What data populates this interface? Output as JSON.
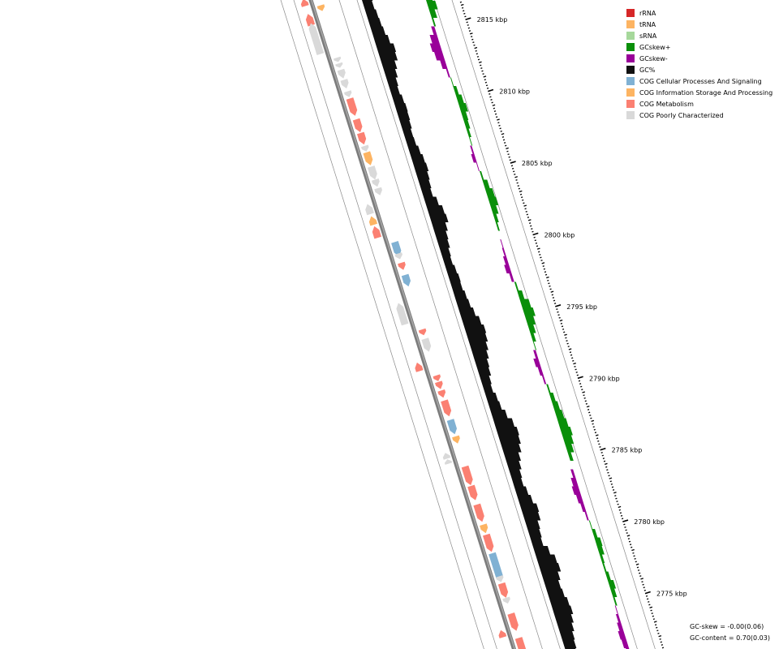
{
  "legend": [
    {
      "label": "rRNA",
      "color": "#d62728"
    },
    {
      "label": "tRNA",
      "color": "#fdb462"
    },
    {
      "label": "sRNA",
      "color": "#a6d89b"
    },
    {
      "label": "GCskew+",
      "color": "#0a8f0a"
    },
    {
      "label": "GCskew-",
      "color": "#990099"
    },
    {
      "label": "GC%",
      "color": "#111111"
    },
    {
      "label": "COG Cellular Processes And Signaling",
      "color": "#80b1d3"
    },
    {
      "label": "COG Information Storage And Processing",
      "color": "#fdb462"
    },
    {
      "label": "COG Metabolism",
      "color": "#fb8072"
    },
    {
      "label": "COG Poorly Characterized",
      "color": "#d9d9d9"
    }
  ],
  "stats": {
    "gc_skew": "GC-skew = -0.00(0.06)",
    "gc_content": "GC-content = 0.70(0.03)"
  },
  "ticks": [
    {
      "kbp": 2815,
      "label": "2815 kbp"
    },
    {
      "kbp": 2810,
      "label": "2810 kbp"
    },
    {
      "kbp": 2805,
      "label": "2805 kbp"
    },
    {
      "kbp": 2800,
      "label": "2800 kbp"
    },
    {
      "kbp": 2795,
      "label": "2795 kbp"
    },
    {
      "kbp": 2790,
      "label": "2790 kbp"
    },
    {
      "kbp": 2785,
      "label": "2785 kbp"
    },
    {
      "kbp": 2780,
      "label": "2780 kbp"
    },
    {
      "kbp": 2775,
      "label": "2775 kbp"
    }
  ],
  "genes": [
    {
      "kbp": 2816.2,
      "len": 0.5,
      "strand": "-",
      "cat": "COG Metabolism"
    },
    {
      "kbp": 2815.8,
      "len": 0.4,
      "strand": "+",
      "cat": "COG Information Storage And Processing"
    },
    {
      "kbp": 2815.0,
      "len": 0.8,
      "strand": "-",
      "cat": "COG Metabolism"
    },
    {
      "kbp": 2813.7,
      "len": 2.1,
      "strand": "-",
      "cat": "COG Poorly Characterized"
    },
    {
      "kbp": 2812.8,
      "len": 0.4,
      "strand": "-",
      "cat": "COG Poorly Characterized"
    },
    {
      "kbp": 2812.2,
      "len": 0.3,
      "strand": "+",
      "cat": "COG Poorly Characterized"
    },
    {
      "kbp": 2811.8,
      "len": 0.3,
      "strand": "+",
      "cat": "COG Poorly Characterized"
    },
    {
      "kbp": 2811.2,
      "len": 0.6,
      "strand": "+",
      "cat": "COG Poorly Characterized"
    },
    {
      "kbp": 2810.5,
      "len": 0.6,
      "strand": "+",
      "cat": "COG Poorly Characterized"
    },
    {
      "kbp": 2809.8,
      "len": 0.4,
      "strand": "+",
      "cat": "COG Poorly Characterized"
    },
    {
      "kbp": 2808.9,
      "len": 1.2,
      "strand": "+",
      "cat": "COG Metabolism"
    },
    {
      "kbp": 2807.6,
      "len": 0.9,
      "strand": "+",
      "cat": "COG Metabolism"
    },
    {
      "kbp": 2806.7,
      "len": 0.8,
      "strand": "+",
      "cat": "COG Metabolism"
    },
    {
      "kbp": 2806.0,
      "len": 0.4,
      "strand": "+",
      "cat": "COG Poorly Characterized"
    },
    {
      "kbp": 2805.3,
      "len": 0.9,
      "strand": "+",
      "cat": "COG Information Storage And Processing"
    },
    {
      "kbp": 2804.3,
      "len": 0.9,
      "strand": "+",
      "cat": "COG Poorly Characterized"
    },
    {
      "kbp": 2803.6,
      "len": 0.5,
      "strand": "+",
      "cat": "COG Poorly Characterized"
    },
    {
      "kbp": 2803.0,
      "len": 0.5,
      "strand": "+",
      "cat": "COG Poorly Characterized"
    },
    {
      "kbp": 2801.8,
      "len": 0.7,
      "strand": "-",
      "cat": "COG Poorly Characterized"
    },
    {
      "kbp": 2801.0,
      "len": 0.6,
      "strand": "-",
      "cat": "COG Information Storage And Processing"
    },
    {
      "kbp": 2800.2,
      "len": 0.8,
      "strand": "-",
      "cat": "COG Metabolism"
    },
    {
      "kbp": 2799.0,
      "len": 1.0,
      "strand": "+",
      "cat": "COG Cellular Processes And Signaling"
    },
    {
      "kbp": 2798.5,
      "len": 0.4,
      "strand": "+",
      "cat": "COG Poorly Characterized"
    },
    {
      "kbp": 2797.8,
      "len": 0.5,
      "strand": "+",
      "cat": "COG Metabolism"
    },
    {
      "kbp": 2796.8,
      "len": 0.8,
      "strand": "+",
      "cat": "COG Cellular Processes And Signaling"
    },
    {
      "kbp": 2794.5,
      "len": 1.5,
      "strand": "-",
      "cat": "COG Poorly Characterized"
    },
    {
      "kbp": 2793.2,
      "len": 0.4,
      "strand": "+",
      "cat": "COG Metabolism"
    },
    {
      "kbp": 2792.3,
      "len": 0.9,
      "strand": "+",
      "cat": "COG Poorly Characterized"
    },
    {
      "kbp": 2790.8,
      "len": 0.6,
      "strand": "-",
      "cat": "COG Metabolism"
    },
    {
      "kbp": 2790.0,
      "len": 0.4,
      "strand": "+",
      "cat": "COG Metabolism"
    },
    {
      "kbp": 2789.5,
      "len": 0.5,
      "strand": "+",
      "cat": "COG Metabolism"
    },
    {
      "kbp": 2788.9,
      "len": 0.5,
      "strand": "+",
      "cat": "COG Metabolism"
    },
    {
      "kbp": 2787.9,
      "len": 1.1,
      "strand": "+",
      "cat": "COG Metabolism"
    },
    {
      "kbp": 2786.6,
      "len": 1.0,
      "strand": "+",
      "cat": "COG Cellular Processes And Signaling"
    },
    {
      "kbp": 2785.7,
      "len": 0.5,
      "strand": "+",
      "cat": "COG Information Storage And Processing"
    },
    {
      "kbp": 2784.6,
      "len": 0.4,
      "strand": "-",
      "cat": "COG Poorly Characterized"
    },
    {
      "kbp": 2784.2,
      "len": 0.3,
      "strand": "-",
      "cat": "COG Poorly Characterized"
    },
    {
      "kbp": 2783.2,
      "len": 1.3,
      "strand": "+",
      "cat": "COG Metabolism"
    },
    {
      "kbp": 2782.0,
      "len": 1.0,
      "strand": "+",
      "cat": "COG Metabolism"
    },
    {
      "kbp": 2780.6,
      "len": 1.2,
      "strand": "+",
      "cat": "COG Metabolism"
    },
    {
      "kbp": 2779.5,
      "len": 0.6,
      "strand": "+",
      "cat": "COG Information Storage And Processing"
    },
    {
      "kbp": 2778.5,
      "len": 1.2,
      "strand": "+",
      "cat": "COG Metabolism"
    },
    {
      "kbp": 2776.8,
      "len": 2.0,
      "strand": "+",
      "cat": "COG Cellular Processes And Signaling"
    },
    {
      "kbp": 2776.0,
      "len": 0.4,
      "strand": "+",
      "cat": "COG Poorly Characterized"
    },
    {
      "kbp": 2775.2,
      "len": 1.0,
      "strand": "+",
      "cat": "COG Metabolism"
    },
    {
      "kbp": 2774.5,
      "len": 0.4,
      "strand": "+",
      "cat": "COG Poorly Characterized"
    },
    {
      "kbp": 2773.0,
      "len": 1.2,
      "strand": "+",
      "cat": "COG Metabolism"
    },
    {
      "kbp": 2772.2,
      "len": 0.5,
      "strand": "-",
      "cat": "COG Metabolism"
    },
    {
      "kbp": 2771.2,
      "len": 1.4,
      "strand": "+",
      "cat": "COG Metabolism"
    },
    {
      "kbp": 2770.0,
      "len": 0.8,
      "strand": "+",
      "cat": "COG Information Storage And Processing"
    }
  ],
  "gc_percent": [
    0.48,
    0.5,
    0.46,
    0.52,
    0.55,
    0.6,
    0.7,
    0.85,
    0.8,
    0.65,
    0.55,
    0.45,
    0.4,
    0.48,
    0.52,
    0.5,
    0.46,
    0.4,
    0.42,
    0.5,
    0.58,
    0.62,
    0.55,
    0.5,
    0.45,
    0.6,
    0.75,
    0.8,
    0.65,
    0.55,
    0.5,
    0.42,
    0.38,
    0.45,
    0.5,
    0.48,
    0.55,
    0.6,
    0.7,
    0.85,
    0.95,
    0.9,
    0.8,
    0.7,
    0.6,
    0.55,
    0.45,
    0.4,
    0.5,
    0.55,
    0.7,
    0.9,
    1.0,
    0.95,
    0.85,
    0.7,
    0.6,
    0.5,
    0.45,
    0.55,
    0.65,
    0.8,
    0.75,
    0.6,
    0.55,
    0.5,
    0.7,
    0.9,
    0.95,
    0.8,
    0.7,
    0.75,
    0.85,
    0.9,
    0.8,
    0.7,
    0.6,
    0.55,
    0.5,
    0.45
  ],
  "gc_skew": [
    0.15,
    0.4,
    0.55,
    0.35,
    0.1,
    -0.2,
    -0.45,
    -0.6,
    -0.5,
    -0.3,
    -0.1,
    0.05,
    0.2,
    0.35,
    0.45,
    0.3,
    0.25,
    0.15,
    0.05,
    -0.1,
    -0.2,
    -0.05,
    0.1,
    0.3,
    0.45,
    0.5,
    0.35,
    0.2,
    0.1,
    0.0,
    -0.05,
    -0.1,
    -0.2,
    -0.3,
    -0.15,
    0.1,
    0.3,
    0.55,
    0.65,
    0.5,
    0.35,
    0.2,
    0.05,
    -0.15,
    -0.3,
    -0.2,
    -0.1,
    0.1,
    0.25,
    0.35,
    0.45,
    0.55,
    0.65,
    0.55,
    0.4,
    0.2,
    0.0,
    -0.15,
    -0.3,
    -0.4,
    -0.3,
    -0.2,
    -0.1,
    0.05,
    0.2,
    0.35,
    0.3,
    0.15,
    0.1,
    0.2,
    0.35,
    0.25,
    0.1,
    -0.05,
    -0.15,
    -0.25,
    -0.35,
    -0.3,
    -0.2,
    -0.1
  ]
}
